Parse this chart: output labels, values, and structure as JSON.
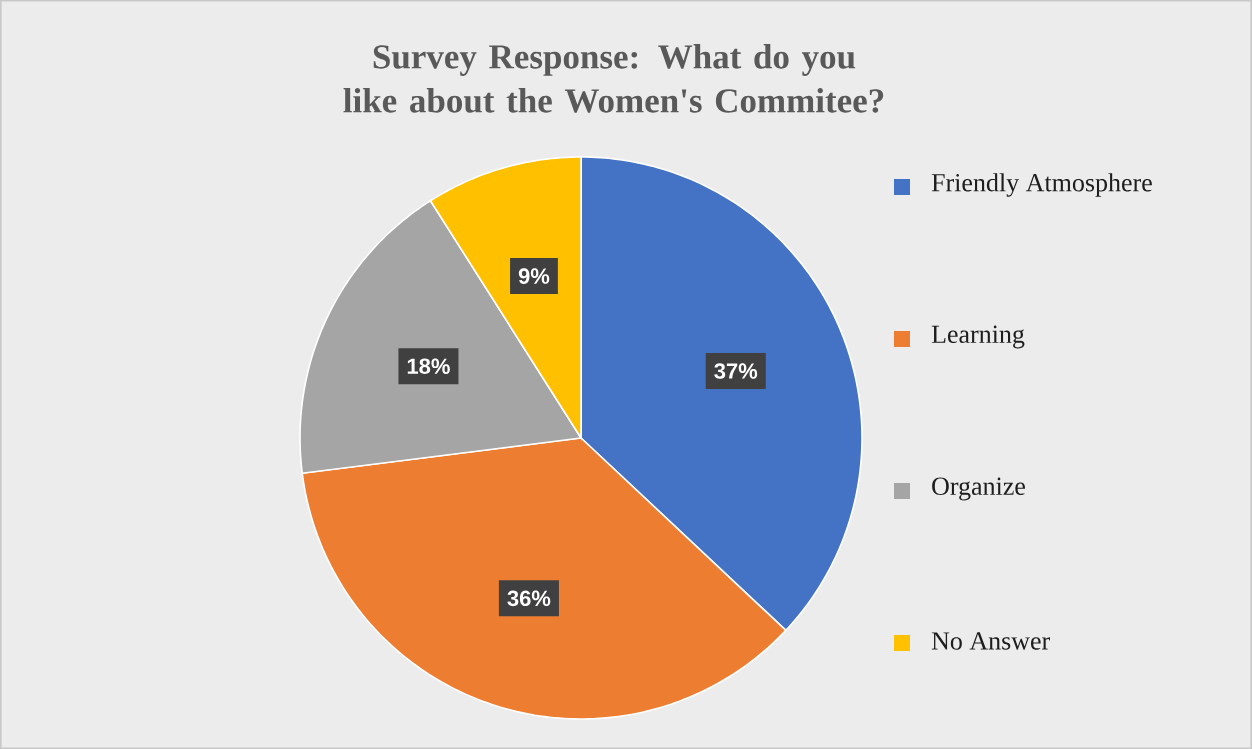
{
  "chart_data": {
    "type": "pie",
    "title": "Survey Response: What do you like about the Women's Commitee?",
    "categories": [
      "Friendly Atmosphere",
      "Learning",
      "Organize",
      "No Answer"
    ],
    "values": [
      37,
      36,
      18,
      9
    ],
    "colors": [
      "#4472c4",
      "#ed7d31",
      "#a5a5a5",
      "#ffc000"
    ],
    "value_labels": [
      "37%",
      "36%",
      "18%",
      "9%"
    ],
    "legend": "right"
  }
}
